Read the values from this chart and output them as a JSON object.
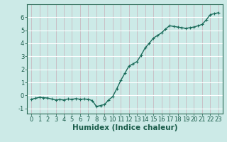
{
  "x": [
    0,
    0.5,
    1,
    1.5,
    2,
    2.5,
    3,
    3.5,
    4,
    4.5,
    5,
    5.5,
    6,
    6.5,
    7,
    7.5,
    8,
    8.5,
    9,
    9.5,
    10,
    10.5,
    11,
    11.5,
    12,
    12.5,
    13,
    13.5,
    14,
    14.5,
    15,
    15.5,
    16,
    16.5,
    17,
    17.5,
    18,
    18.5,
    19,
    19.5,
    20,
    20.5,
    21,
    21.5,
    22,
    22.5,
    23
  ],
  "y": [
    -0.3,
    -0.22,
    -0.15,
    -0.18,
    -0.2,
    -0.28,
    -0.35,
    -0.32,
    -0.35,
    -0.28,
    -0.3,
    -0.25,
    -0.3,
    -0.28,
    -0.3,
    -0.4,
    -0.85,
    -0.78,
    -0.7,
    -0.35,
    -0.1,
    0.5,
    1.15,
    1.7,
    2.25,
    2.42,
    2.6,
    3.1,
    3.65,
    4.0,
    4.4,
    4.6,
    4.8,
    5.1,
    5.35,
    5.3,
    5.25,
    5.2,
    5.15,
    5.2,
    5.25,
    5.35,
    5.45,
    5.8,
    6.2,
    6.28,
    6.35
  ],
  "xlabel": "Humidex (Indice chaleur)",
  "xlim": [
    -0.5,
    23.5
  ],
  "ylim": [
    -1.4,
    7.0
  ],
  "yticks": [
    -1,
    0,
    1,
    2,
    3,
    4,
    5,
    6
  ],
  "xticks": [
    0,
    1,
    2,
    3,
    4,
    5,
    6,
    7,
    8,
    9,
    10,
    11,
    12,
    13,
    14,
    15,
    16,
    17,
    18,
    19,
    20,
    21,
    22,
    23
  ],
  "line_color": "#1a6b5a",
  "marker_color": "#1a6b5a",
  "bg_color": "#cceae7",
  "grid_color_h": "#ffffff",
  "grid_color_v": "#c9b8c0",
  "axis_color": "#2d6b57",
  "label_color": "#1a5c4a",
  "marker": "+",
  "markersize": 3.5,
  "linewidth": 1.0,
  "xlabel_fontsize": 7.5,
  "tick_fontsize": 6.0
}
